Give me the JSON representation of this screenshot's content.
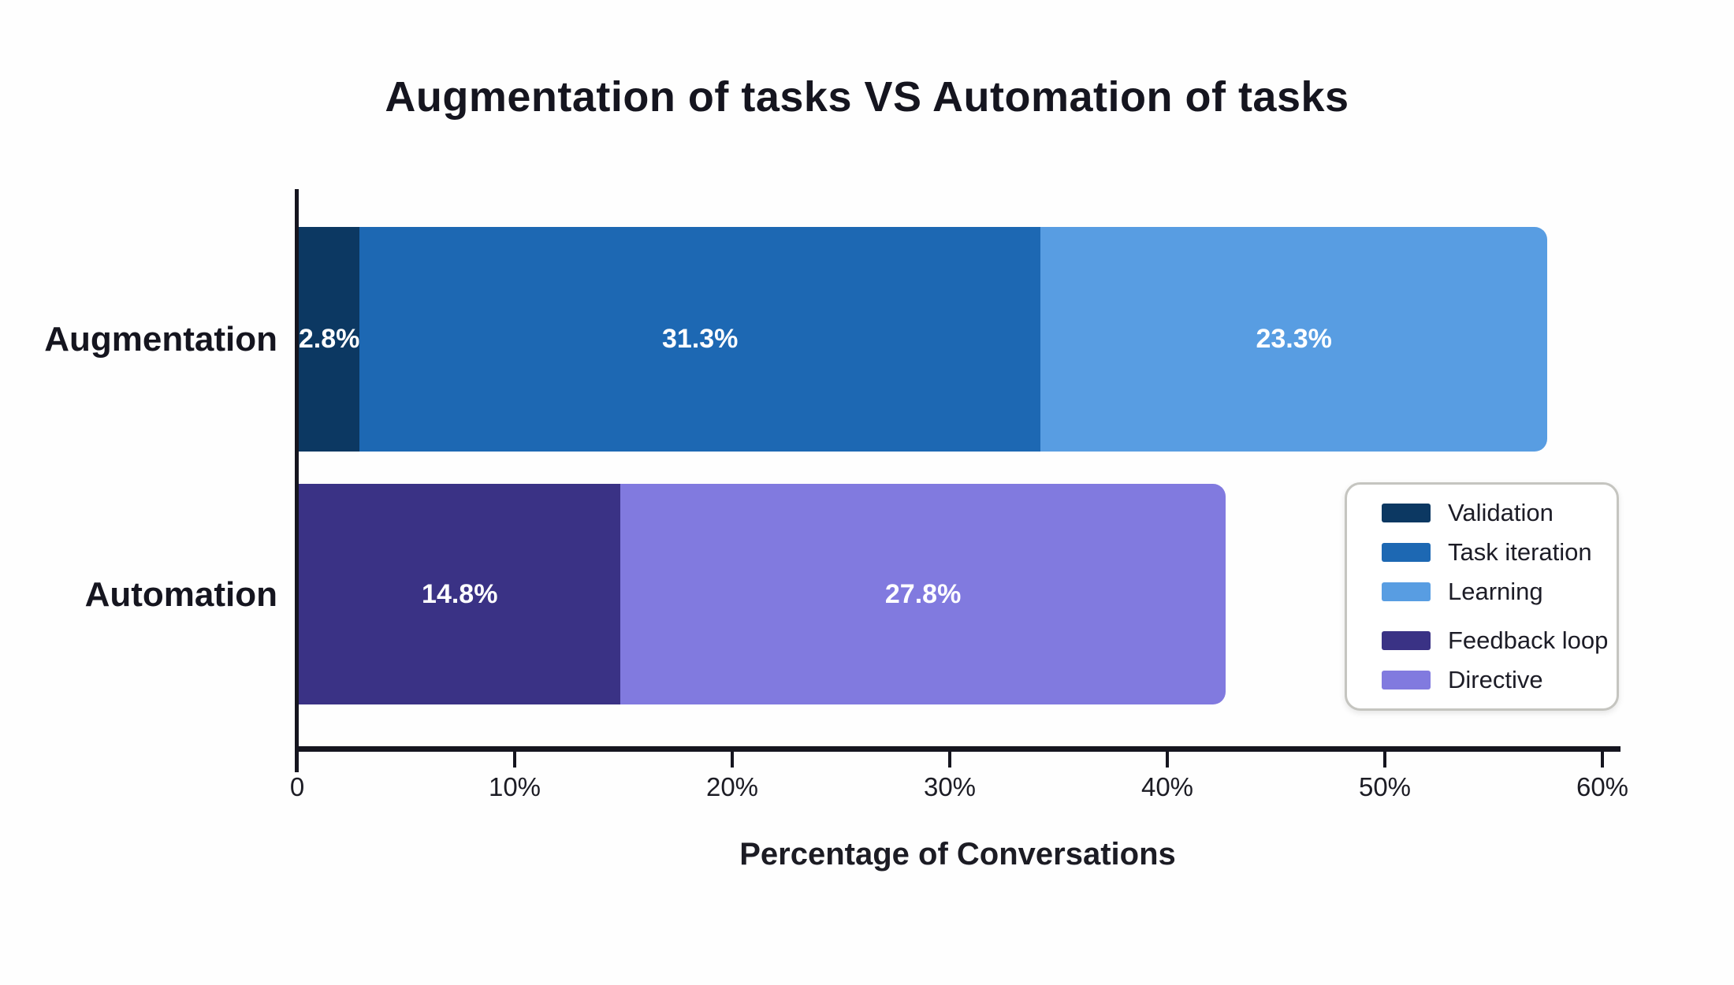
{
  "chart_data": {
    "type": "bar",
    "orientation": "horizontal",
    "stacked": true,
    "title": "Augmentation of tasks VS Automation of tasks",
    "xlabel": "Percentage of Conversations",
    "xlim": [
      0,
      60
    ],
    "x_ticks": [
      "0",
      "10%",
      "20%",
      "30%",
      "40%",
      "50%",
      "60%"
    ],
    "grid": false,
    "categories": [
      "Augmentation",
      "Automation"
    ],
    "bars": [
      {
        "category": "Augmentation",
        "segments": [
          {
            "name": "Validation",
            "value": 2.8,
            "label": "2.8%",
            "color": "#0c3862"
          },
          {
            "name": "Task iteration",
            "value": 31.3,
            "label": "31.3%",
            "color": "#1d68b3"
          },
          {
            "name": "Learning",
            "value": 23.3,
            "label": "23.3%",
            "color": "#589de2"
          }
        ]
      },
      {
        "category": "Automation",
        "segments": [
          {
            "name": "Feedback loop",
            "value": 14.8,
            "label": "14.8%",
            "color": "#3a3285"
          },
          {
            "name": "Directive",
            "value": 27.8,
            "label": "27.8%",
            "color": "#817adf"
          }
        ]
      }
    ],
    "legend": {
      "position": "bottom-right",
      "groups": [
        [
          {
            "label": "Validation",
            "color": "#0c3862"
          },
          {
            "label": "Task iteration",
            "color": "#1d68b3"
          },
          {
            "label": "Learning",
            "color": "#589de2"
          }
        ],
        [
          {
            "label": "Feedback loop",
            "color": "#3a3285"
          },
          {
            "label": "Directive",
            "color": "#817adf"
          }
        ]
      ]
    },
    "colors": {
      "axis": "#15151f",
      "text": "#1c1c24",
      "bar_value_text": "#ffffff",
      "legend_border": "#c5c5c0",
      "background": "#fefefe"
    }
  }
}
